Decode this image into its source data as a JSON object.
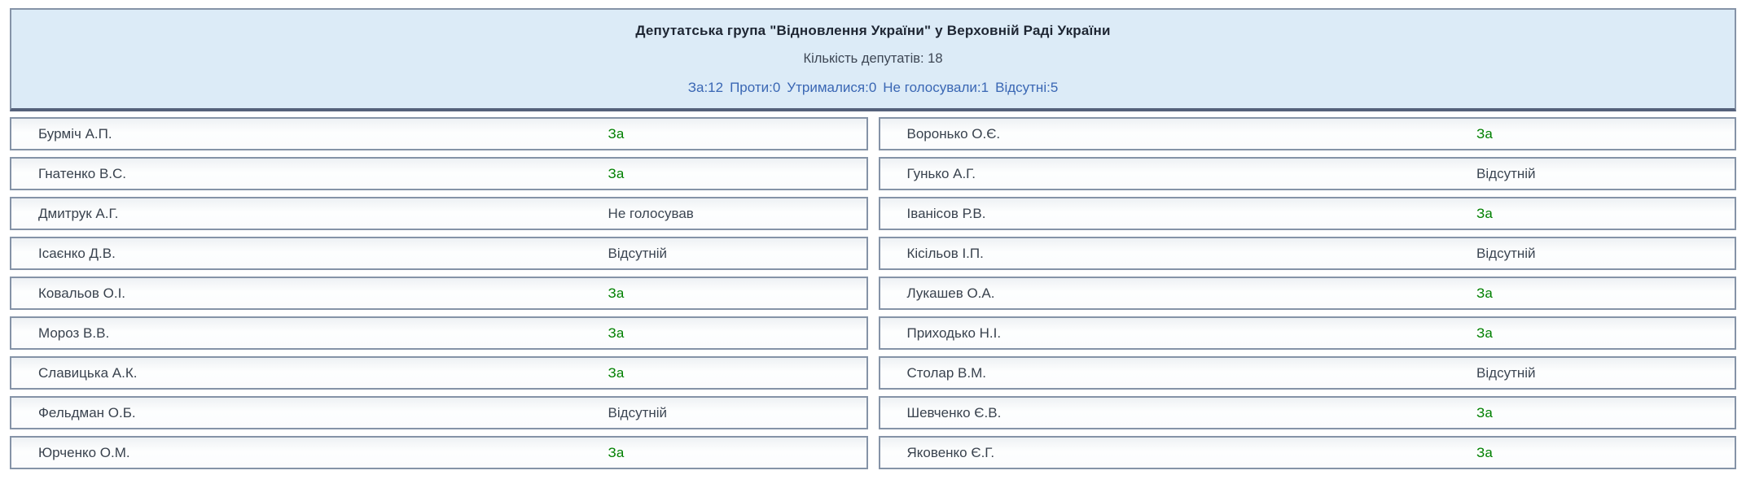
{
  "header": {
    "title": "Депутатська група \"Відновлення України\" у Верховній Раді України",
    "count_label": "Кількість депутатів: 18",
    "summary": [
      {
        "label": "За",
        "value": 12
      },
      {
        "label": "Проти",
        "value": 0
      },
      {
        "label": "Утрималися",
        "value": 0
      },
      {
        "label": "Не голосували",
        "value": 1
      },
      {
        "label": "Відсутні",
        "value": 5
      }
    ]
  },
  "votes": {
    "for_label": "За",
    "colors": {
      "vote_for": "#008000",
      "vote_other": "#3c4653",
      "summary_text": "#3a67b4",
      "header_background": "#dcebf7",
      "box_border": "#8593a7",
      "header_bottom_border": "#55617b"
    }
  },
  "table": {
    "left": [
      {
        "name": "Бурміч А.П.",
        "vote": "За"
      },
      {
        "name": "Гнатенко В.С.",
        "vote": "За"
      },
      {
        "name": "Дмитрук А.Г.",
        "vote": "Не голосував"
      },
      {
        "name": "Ісаєнко Д.В.",
        "vote": "Відсутній"
      },
      {
        "name": "Ковальов О.І.",
        "vote": "За"
      },
      {
        "name": "Мороз В.В.",
        "vote": "За"
      },
      {
        "name": "Славицька А.К.",
        "vote": "За"
      },
      {
        "name": "Фельдман О.Б.",
        "vote": "Відсутній"
      },
      {
        "name": "Юрченко О.М.",
        "vote": "За"
      }
    ],
    "right": [
      {
        "name": "Воронько О.Є.",
        "vote": "За"
      },
      {
        "name": "Гунько А.Г.",
        "vote": "Відсутній"
      },
      {
        "name": "Іванісов Р.В.",
        "vote": "За"
      },
      {
        "name": "Кісільов І.П.",
        "vote": "Відсутній"
      },
      {
        "name": "Лукашев О.А.",
        "vote": "За"
      },
      {
        "name": "Приходько Н.І.",
        "vote": "За"
      },
      {
        "name": "Столар В.М.",
        "vote": "Відсутній"
      },
      {
        "name": "Шевченко Є.В.",
        "vote": "За"
      },
      {
        "name": "Яковенко Є.Г.",
        "vote": "За"
      }
    ]
  }
}
